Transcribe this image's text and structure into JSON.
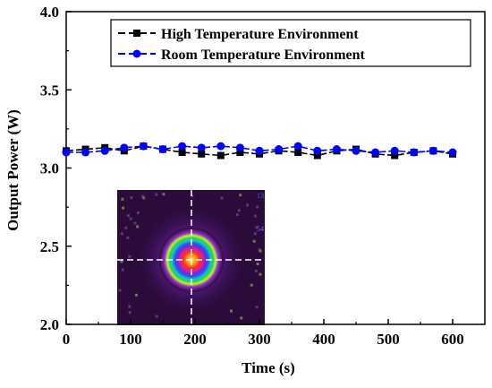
{
  "chart_data": {
    "type": "line",
    "title": "",
    "xlabel": "Time (s)",
    "ylabel": "Output Power (W)",
    "xlim": [
      0,
      650
    ],
    "ylim": [
      2.0,
      4.0
    ],
    "xticks": [
      0,
      100,
      200,
      300,
      400,
      500,
      600
    ],
    "yticks": [
      2.0,
      2.5,
      3.0,
      3.5,
      4.0
    ],
    "xtick_labels": [
      "0",
      "100",
      "200",
      "300",
      "400",
      "500",
      "600"
    ],
    "ytick_labels": [
      "2.0",
      "2.5",
      "3.0",
      "3.5",
      "4.0"
    ],
    "grid": false,
    "legend_position": "top-right",
    "series": [
      {
        "name": "High Temperature Environment",
        "color": "#000000",
        "marker": "square",
        "line_style": "dashed",
        "x": [
          0,
          30,
          60,
          90,
          120,
          150,
          180,
          210,
          240,
          270,
          300,
          330,
          360,
          390,
          420,
          450,
          480,
          510,
          540,
          570,
          600
        ],
        "y": [
          3.11,
          3.12,
          3.13,
          3.11,
          3.14,
          3.12,
          3.1,
          3.09,
          3.08,
          3.1,
          3.09,
          3.11,
          3.1,
          3.08,
          3.11,
          3.12,
          3.09,
          3.08,
          3.1,
          3.11,
          3.09
        ]
      },
      {
        "name": "Room Temperature Environment",
        "color": "#0000ff",
        "marker": "circle",
        "line_style": "dashed",
        "x": [
          0,
          30,
          60,
          90,
          120,
          150,
          180,
          210,
          240,
          270,
          300,
          330,
          360,
          390,
          420,
          450,
          480,
          510,
          540,
          570,
          600
        ],
        "y": [
          3.1,
          3.1,
          3.11,
          3.13,
          3.14,
          3.12,
          3.14,
          3.13,
          3.14,
          3.13,
          3.11,
          3.12,
          3.14,
          3.11,
          3.12,
          3.11,
          3.1,
          3.11,
          3.1,
          3.11,
          3.1
        ]
      }
    ],
    "inset": {
      "type": "beam-profile-image",
      "side_labels": [
        "13",
        "54"
      ]
    }
  }
}
